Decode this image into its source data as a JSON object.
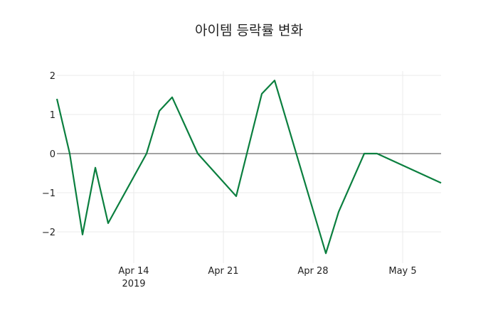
{
  "chart_data": {
    "type": "line",
    "title": "아이템 등락률 변화",
    "xlabel": "",
    "ylabel": "",
    "x": [
      "2019-04-08",
      "2019-04-09",
      "2019-04-10",
      "2019-04-11",
      "2019-04-12",
      "2019-04-15",
      "2019-04-16",
      "2019-04-17",
      "2019-04-19",
      "2019-04-22",
      "2019-04-24",
      "2019-04-25",
      "2019-04-29",
      "2019-04-30",
      "2019-05-02",
      "2019-05-03",
      "2019-05-08"
    ],
    "series": [
      {
        "name": "등락률",
        "color": "#0b7f3f",
        "values": [
          1.4,
          0.0,
          -2.07,
          -0.36,
          -1.78,
          0.0,
          1.09,
          1.44,
          0.0,
          -1.09,
          1.53,
          1.87,
          -2.55,
          -1.49,
          0.0,
          0.0,
          -0.75
        ]
      }
    ],
    "ylim": [
      -2.75,
      2.2
    ],
    "y_ticks": [
      "2",
      "1",
      "0",
      "−1",
      "−2"
    ],
    "y_tick_values": [
      2,
      1,
      0,
      -1,
      -2
    ],
    "x_ticks": [
      {
        "label": "Apr 14",
        "sub": "2019",
        "date": "2019-04-14"
      },
      {
        "label": "Apr 21",
        "sub": "",
        "date": "2019-04-21"
      },
      {
        "label": "Apr 28",
        "sub": "",
        "date": "2019-04-28"
      },
      {
        "label": "May 5",
        "sub": "",
        "date": "2019-05-05"
      }
    ],
    "grid": true,
    "legend": false
  }
}
